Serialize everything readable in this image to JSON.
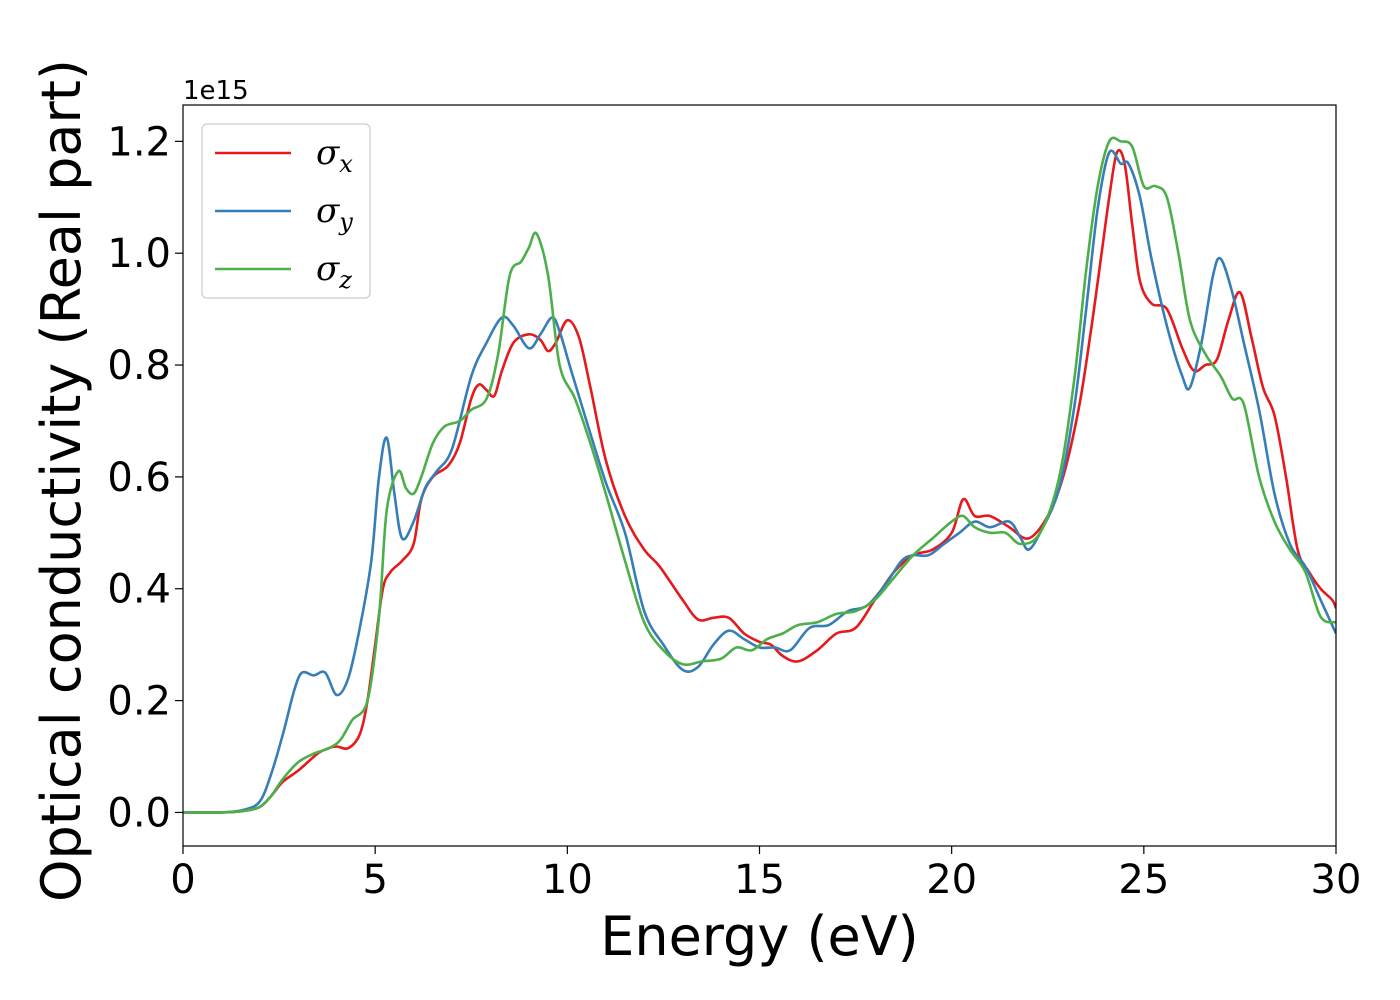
{
  "chart_data": {
    "type": "line",
    "title": "",
    "xlabel": "Energy (eV)",
    "ylabel": "Optical conductivity (Real part)",
    "y_offset_text": "1e15",
    "xlim": [
      0,
      30
    ],
    "ylim": [
      -0.06,
      1.265
    ],
    "x_ticks": [
      0,
      5,
      10,
      15,
      20,
      25,
      30
    ],
    "x_tick_labels": [
      "0",
      "5",
      "10",
      "15",
      "20",
      "25",
      "30"
    ],
    "y_ticks": [
      0.0,
      0.2,
      0.4,
      0.6,
      0.8,
      1.0,
      1.2
    ],
    "y_tick_labels": [
      "0.0",
      "0.2",
      "0.4",
      "0.6",
      "0.8",
      "1.0",
      "1.2"
    ],
    "grid": false,
    "legend_position": "top-left",
    "series": [
      {
        "name": "σx",
        "symbol": "σ",
        "subscript": "x",
        "color": "#e41a1c",
        "points": [
          [
            0,
            0
          ],
          [
            1,
            0
          ],
          [
            1.6,
            0.003
          ],
          [
            2,
            0.01
          ],
          [
            2.3,
            0.03
          ],
          [
            2.6,
            0.055
          ],
          [
            3,
            0.075
          ],
          [
            3.5,
            0.105
          ],
          [
            3.8,
            0.115
          ],
          [
            4,
            0.118
          ],
          [
            4.3,
            0.115
          ],
          [
            4.6,
            0.14
          ],
          [
            4.8,
            0.2
          ],
          [
            5,
            0.3
          ],
          [
            5.2,
            0.4
          ],
          [
            5.4,
            0.43
          ],
          [
            5.7,
            0.45
          ],
          [
            6,
            0.48
          ],
          [
            6.2,
            0.56
          ],
          [
            6.5,
            0.6
          ],
          [
            6.9,
            0.62
          ],
          [
            7.2,
            0.66
          ],
          [
            7.5,
            0.74
          ],
          [
            7.7,
            0.765
          ],
          [
            7.9,
            0.755
          ],
          [
            8.1,
            0.745
          ],
          [
            8.3,
            0.79
          ],
          [
            8.6,
            0.84
          ],
          [
            9,
            0.855
          ],
          [
            9.3,
            0.845
          ],
          [
            9.5,
            0.825
          ],
          [
            9.7,
            0.84
          ],
          [
            10,
            0.88
          ],
          [
            10.3,
            0.85
          ],
          [
            10.6,
            0.76
          ],
          [
            11,
            0.63
          ],
          [
            11.5,
            0.53
          ],
          [
            12,
            0.47
          ],
          [
            12.4,
            0.44
          ],
          [
            13,
            0.38
          ],
          [
            13.4,
            0.345
          ],
          [
            13.8,
            0.348
          ],
          [
            14.2,
            0.348
          ],
          [
            14.6,
            0.32
          ],
          [
            15,
            0.305
          ],
          [
            15.3,
            0.3
          ],
          [
            15.6,
            0.28
          ],
          [
            16,
            0.27
          ],
          [
            16.5,
            0.29
          ],
          [
            17,
            0.32
          ],
          [
            17.5,
            0.33
          ],
          [
            18,
            0.38
          ],
          [
            18.5,
            0.43
          ],
          [
            19,
            0.46
          ],
          [
            19.5,
            0.47
          ],
          [
            20,
            0.5
          ],
          [
            20.3,
            0.56
          ],
          [
            20.6,
            0.53
          ],
          [
            21,
            0.53
          ],
          [
            21.5,
            0.51
          ],
          [
            22,
            0.49
          ],
          [
            22.5,
            0.53
          ],
          [
            22.9,
            0.6
          ],
          [
            23.3,
            0.72
          ],
          [
            23.6,
            0.85
          ],
          [
            23.9,
            1.0
          ],
          [
            24.1,
            1.1
          ],
          [
            24.3,
            1.18
          ],
          [
            24.5,
            1.16
          ],
          [
            24.7,
            1.05
          ],
          [
            24.9,
            0.95
          ],
          [
            25.2,
            0.91
          ],
          [
            25.6,
            0.9
          ],
          [
            26,
            0.83
          ],
          [
            26.3,
            0.79
          ],
          [
            26.6,
            0.8
          ],
          [
            26.9,
            0.81
          ],
          [
            27.2,
            0.88
          ],
          [
            27.5,
            0.93
          ],
          [
            27.8,
            0.85
          ],
          [
            28.1,
            0.76
          ],
          [
            28.4,
            0.71
          ],
          [
            28.7,
            0.6
          ],
          [
            29,
            0.47
          ],
          [
            29.3,
            0.43
          ],
          [
            29.6,
            0.4
          ],
          [
            29.9,
            0.38
          ],
          [
            30,
            0.365
          ]
        ]
      },
      {
        "name": "σy",
        "symbol": "σ",
        "subscript": "y",
        "color": "#377eb8",
        "points": [
          [
            0,
            0
          ],
          [
            1,
            0
          ],
          [
            1.6,
            0.005
          ],
          [
            2,
            0.02
          ],
          [
            2.3,
            0.07
          ],
          [
            2.6,
            0.14
          ],
          [
            2.9,
            0.22
          ],
          [
            3.1,
            0.25
          ],
          [
            3.4,
            0.245
          ],
          [
            3.7,
            0.25
          ],
          [
            4,
            0.21
          ],
          [
            4.3,
            0.24
          ],
          [
            4.6,
            0.33
          ],
          [
            4.9,
            0.45
          ],
          [
            5.1,
            0.6
          ],
          [
            5.3,
            0.67
          ],
          [
            5.5,
            0.57
          ],
          [
            5.7,
            0.49
          ],
          [
            6,
            0.52
          ],
          [
            6.3,
            0.58
          ],
          [
            6.6,
            0.61
          ],
          [
            7,
            0.65
          ],
          [
            7.5,
            0.78
          ],
          [
            7.9,
            0.84
          ],
          [
            8.3,
            0.885
          ],
          [
            8.6,
            0.87
          ],
          [
            9,
            0.83
          ],
          [
            9.3,
            0.855
          ],
          [
            9.6,
            0.885
          ],
          [
            9.8,
            0.86
          ],
          [
            10.1,
            0.79
          ],
          [
            10.5,
            0.7
          ],
          [
            11,
            0.59
          ],
          [
            11.5,
            0.5
          ],
          [
            12,
            0.36
          ],
          [
            12.5,
            0.3
          ],
          [
            13,
            0.255
          ],
          [
            13.4,
            0.26
          ],
          [
            13.8,
            0.3
          ],
          [
            14.2,
            0.325
          ],
          [
            14.6,
            0.31
          ],
          [
            15,
            0.295
          ],
          [
            15.4,
            0.295
          ],
          [
            15.8,
            0.29
          ],
          [
            16.3,
            0.33
          ],
          [
            16.8,
            0.335
          ],
          [
            17.3,
            0.36
          ],
          [
            17.8,
            0.37
          ],
          [
            18.3,
            0.41
          ],
          [
            18.7,
            0.45
          ],
          [
            19,
            0.46
          ],
          [
            19.4,
            0.46
          ],
          [
            19.8,
            0.48
          ],
          [
            20.2,
            0.5
          ],
          [
            20.6,
            0.52
          ],
          [
            21,
            0.51
          ],
          [
            21.5,
            0.52
          ],
          [
            21.8,
            0.49
          ],
          [
            22,
            0.47
          ],
          [
            22.3,
            0.5
          ],
          [
            22.8,
            0.58
          ],
          [
            23.2,
            0.73
          ],
          [
            23.5,
            0.9
          ],
          [
            23.8,
            1.08
          ],
          [
            24.1,
            1.18
          ],
          [
            24.4,
            1.16
          ],
          [
            24.6,
            1.16
          ],
          [
            24.9,
            1.1
          ],
          [
            25.2,
            0.99
          ],
          [
            25.6,
            0.87
          ],
          [
            26,
            0.78
          ],
          [
            26.2,
            0.76
          ],
          [
            26.5,
            0.84
          ],
          [
            26.8,
            0.96
          ],
          [
            27,
            0.99
          ],
          [
            27.3,
            0.93
          ],
          [
            27.6,
            0.84
          ],
          [
            28,
            0.72
          ],
          [
            28.4,
            0.57
          ],
          [
            28.8,
            0.48
          ],
          [
            29.2,
            0.44
          ],
          [
            29.6,
            0.38
          ],
          [
            30,
            0.32
          ]
        ]
      },
      {
        "name": "σz",
        "symbol": "σ",
        "subscript": "z",
        "color": "#4daf4a",
        "points": [
          [
            0,
            0
          ],
          [
            1,
            0
          ],
          [
            1.6,
            0.003
          ],
          [
            2,
            0.01
          ],
          [
            2.3,
            0.03
          ],
          [
            2.6,
            0.06
          ],
          [
            3,
            0.09
          ],
          [
            3.4,
            0.105
          ],
          [
            3.8,
            0.115
          ],
          [
            4.1,
            0.13
          ],
          [
            4.4,
            0.165
          ],
          [
            4.8,
            0.2
          ],
          [
            5.1,
            0.35
          ],
          [
            5.3,
            0.54
          ],
          [
            5.6,
            0.61
          ],
          [
            5.8,
            0.58
          ],
          [
            6,
            0.57
          ],
          [
            6.2,
            0.6
          ],
          [
            6.5,
            0.66
          ],
          [
            6.8,
            0.69
          ],
          [
            7.2,
            0.7
          ],
          [
            7.5,
            0.72
          ],
          [
            7.9,
            0.74
          ],
          [
            8.2,
            0.82
          ],
          [
            8.5,
            0.96
          ],
          [
            8.8,
            0.985
          ],
          [
            9,
            1.01
          ],
          [
            9.2,
            1.035
          ],
          [
            9.5,
            0.96
          ],
          [
            9.8,
            0.8
          ],
          [
            10.2,
            0.74
          ],
          [
            10.6,
            0.66
          ],
          [
            11,
            0.57
          ],
          [
            11.5,
            0.45
          ],
          [
            12,
            0.34
          ],
          [
            12.5,
            0.29
          ],
          [
            13,
            0.265
          ],
          [
            13.5,
            0.27
          ],
          [
            14,
            0.275
          ],
          [
            14.4,
            0.295
          ],
          [
            14.8,
            0.29
          ],
          [
            15.2,
            0.31
          ],
          [
            15.6,
            0.32
          ],
          [
            16,
            0.335
          ],
          [
            16.5,
            0.34
          ],
          [
            17,
            0.355
          ],
          [
            17.5,
            0.36
          ],
          [
            18,
            0.38
          ],
          [
            18.5,
            0.42
          ],
          [
            19,
            0.46
          ],
          [
            19.5,
            0.49
          ],
          [
            20,
            0.52
          ],
          [
            20.3,
            0.53
          ],
          [
            20.6,
            0.51
          ],
          [
            21,
            0.5
          ],
          [
            21.4,
            0.5
          ],
          [
            21.8,
            0.48
          ],
          [
            22.3,
            0.5
          ],
          [
            22.8,
            0.6
          ],
          [
            23.2,
            0.78
          ],
          [
            23.5,
            0.97
          ],
          [
            23.8,
            1.12
          ],
          [
            24.1,
            1.2
          ],
          [
            24.4,
            1.2
          ],
          [
            24.7,
            1.19
          ],
          [
            25,
            1.12
          ],
          [
            25.3,
            1.12
          ],
          [
            25.6,
            1.1
          ],
          [
            25.9,
            1.0
          ],
          [
            26.2,
            0.88
          ],
          [
            26.6,
            0.82
          ],
          [
            27,
            0.78
          ],
          [
            27.3,
            0.74
          ],
          [
            27.6,
            0.73
          ],
          [
            28,
            0.6
          ],
          [
            28.4,
            0.52
          ],
          [
            28.8,
            0.47
          ],
          [
            29.2,
            0.43
          ],
          [
            29.6,
            0.35
          ],
          [
            30,
            0.34
          ]
        ]
      }
    ]
  }
}
